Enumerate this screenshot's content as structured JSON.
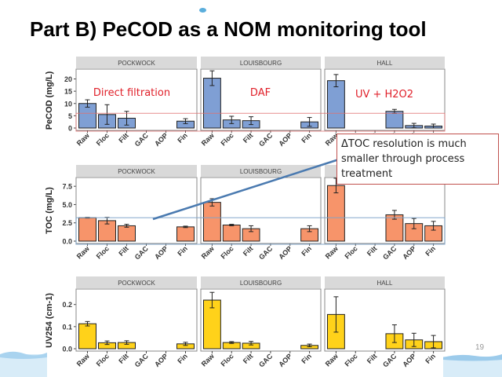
{
  "slide": {
    "title": "Part B) PeCOD as a NOM monitoring tool",
    "page_number": "19",
    "callout_text": "ΔTOC resolution is much smaller through process treatment",
    "annotations": [
      "Direct filtration",
      "DAF",
      "UV + H2O2"
    ],
    "colors": {
      "pecod": "#7f9fd4",
      "toc": "#f7946a",
      "uv": "#ffd21a",
      "callout_border": "#c0504d",
      "annotation": "#e0202a",
      "pecod_ref_line": "#e07070",
      "toc_ref_line": "#7ea4c8",
      "arrow": "#4a7ab0"
    }
  },
  "chart_data": [
    {
      "type": "bar",
      "ylabel": "PeCOD (mg/L)",
      "ylim": [
        0,
        24
      ],
      "yticks": [
        0,
        5,
        10,
        15,
        20
      ],
      "ytick_labels": [
        "0",
        "5",
        "10",
        "15",
        "20"
      ],
      "reference_line": 6,
      "categories": [
        "Raw",
        "Floc",
        "Filt",
        "GAC",
        "AOP",
        "Fin"
      ],
      "panels": [
        {
          "name": "POCKWOCK",
          "annotation": "Direct filtration",
          "values": [
            10,
            5.5,
            4,
            null,
            null,
            2.8
          ],
          "errors": [
            1.5,
            4,
            2.8,
            null,
            null,
            1
          ]
        },
        {
          "name": "LOUISBOURG",
          "annotation": "DAF",
          "values": [
            20.3,
            3.3,
            3,
            null,
            null,
            2.5
          ],
          "errors": [
            3,
            1.5,
            1.6,
            null,
            null,
            1.8
          ]
        },
        {
          "name": "HALL",
          "annotation": "UV + H2O2",
          "values": [
            19.3,
            null,
            null,
            6.8,
            1,
            0.8
          ],
          "errors": [
            2.5,
            null,
            null,
            0.8,
            0.9,
            0.8
          ]
        }
      ]
    },
    {
      "type": "bar",
      "ylabel": "TOC (mg/L)",
      "ylim": [
        0,
        8.7
      ],
      "yticks": [
        0,
        2.5,
        5,
        7.5
      ],
      "ytick_labels": [
        "0.0",
        "2.5",
        "5.0",
        "7.5"
      ],
      "reference_line": 3.2,
      "categories": [
        "Raw",
        "Floc",
        "Filt",
        "GAC",
        "AOP",
        "Fin"
      ],
      "panels": [
        {
          "name": "POCKWOCK",
          "values": [
            3.2,
            2.8,
            2.1,
            null,
            null,
            1.95
          ],
          "errors": [
            0.05,
            0.45,
            0.2,
            null,
            null,
            0.1
          ]
        },
        {
          "name": "LOUISBOURG",
          "values": [
            5.3,
            2.2,
            1.7,
            null,
            null,
            1.7
          ],
          "errors": [
            0.5,
            0.1,
            0.4,
            null,
            null,
            0.4
          ]
        },
        {
          "name": "HALL",
          "values": [
            7.6,
            null,
            null,
            3.6,
            2.4,
            2.1
          ],
          "errors": [
            1,
            null,
            null,
            0.6,
            0.7,
            0.6
          ]
        }
      ]
    },
    {
      "type": "bar",
      "ylabel": "UV254 (cm-1)",
      "ylim": [
        0,
        0.27
      ],
      "yticks": [
        0,
        0.1,
        0.2
      ],
      "ytick_labels": [
        "0.0",
        "0.1",
        "0.2"
      ],
      "categories": [
        "Raw",
        "Floc",
        "Filt",
        "GAC",
        "AOP",
        "Fin"
      ],
      "panels": [
        {
          "name": "POCKWOCK",
          "values": [
            0.113,
            0.027,
            0.028,
            null,
            null,
            0.022
          ],
          "errors": [
            0.01,
            0.008,
            0.008,
            null,
            null,
            0.007
          ]
        },
        {
          "name": "LOUISBOURG",
          "values": [
            0.22,
            0.028,
            0.025,
            null,
            null,
            0.015
          ],
          "errors": [
            0.035,
            0.004,
            0.008,
            null,
            null,
            0.006
          ]
        },
        {
          "name": "HALL",
          "values": [
            0.155,
            null,
            null,
            0.068,
            0.04,
            0.032
          ],
          "errors": [
            0.08,
            null,
            null,
            0.04,
            0.03,
            0.028
          ]
        }
      ]
    }
  ]
}
